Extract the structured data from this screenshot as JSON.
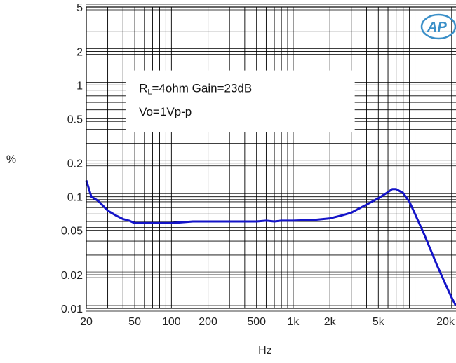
{
  "chart_data": {
    "type": "line",
    "title": "",
    "xlabel": "Hz",
    "ylabel": "%",
    "xscale": "log",
    "yscale": "log",
    "xlim": [
      20,
      22000
    ],
    "ylim": [
      0.01,
      5
    ],
    "grid": true,
    "x_ticks": [
      {
        "value": 20,
        "label": "20"
      },
      {
        "value": 50,
        "label": "50"
      },
      {
        "value": 100,
        "label": "100"
      },
      {
        "value": 200,
        "label": "200"
      },
      {
        "value": 500,
        "label": "500"
      },
      {
        "value": 1000,
        "label": "1k"
      },
      {
        "value": 2000,
        "label": "2k"
      },
      {
        "value": 5000,
        "label": "5k"
      },
      {
        "value": 20000,
        "label": "20k"
      }
    ],
    "y_ticks": [
      {
        "value": 5,
        "label": "5"
      },
      {
        "value": 2,
        "label": "2"
      },
      {
        "value": 1,
        "label": "1"
      },
      {
        "value": 0.5,
        "label": "0.5"
      },
      {
        "value": 0.2,
        "label": "0.2"
      },
      {
        "value": 0.1,
        "label": "0.1"
      },
      {
        "value": 0.05,
        "label": "0.05"
      },
      {
        "value": 0.02,
        "label": "0.02"
      },
      {
        "value": 0.01,
        "label": "0.01"
      }
    ],
    "annotation": {
      "line1_main": "R",
      "line1_sub": "L",
      "line1_rest": "=4ohm Gain=23dB",
      "line2": "Vo=1Vp-p"
    },
    "series": [
      {
        "color": "#1414c8",
        "x": [
          20,
          22,
          25,
          30,
          35,
          40,
          45,
          50,
          60,
          80,
          100,
          150,
          200,
          300,
          400,
          500,
          600,
          700,
          800,
          1000,
          1500,
          2000,
          2500,
          3000,
          4000,
          5000,
          6000,
          6500,
          7000,
          8000,
          9000,
          10000,
          12000,
          15000,
          18000,
          20000,
          22000
        ],
        "y": [
          0.14,
          0.1,
          0.092,
          0.075,
          0.068,
          0.063,
          0.061,
          0.058,
          0.058,
          0.058,
          0.058,
          0.06,
          0.06,
          0.06,
          0.06,
          0.06,
          0.061,
          0.06,
          0.061,
          0.061,
          0.062,
          0.064,
          0.068,
          0.072,
          0.085,
          0.097,
          0.11,
          0.117,
          0.117,
          0.108,
          0.09,
          0.07,
          0.045,
          0.025,
          0.016,
          0.0125,
          0.0105
        ]
      }
    ]
  },
  "logo": {
    "text": "AP",
    "color": "#3a8fc8"
  }
}
